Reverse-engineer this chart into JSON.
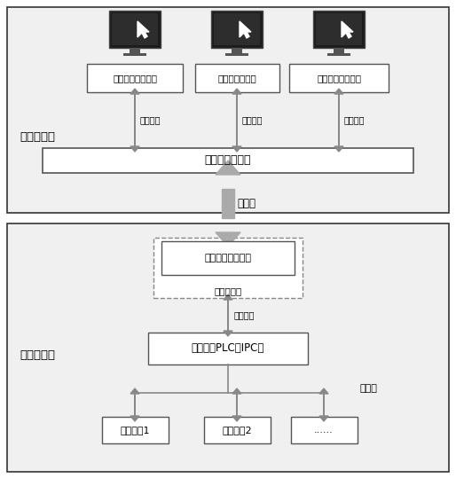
{
  "fig_width": 5.14,
  "fig_height": 5.39,
  "dpi": 100,
  "bg_color": "#ffffff",
  "border_color": "#333333",
  "box_color": "#ffffff",
  "remote_station_label": "远程操作站",
  "field_station_label": "现场控制站",
  "internet_label": "互联网",
  "lan_label": "局域网",
  "data_share_label": "数据共享",
  "top_boxes": [
    "控制策略组态软件",
    "数据库组态软件",
    "人机界面组态软件"
  ],
  "client_box": "客户端通信软件",
  "server_box": "服务器端通信软件",
  "local_server_label": "本地服务器",
  "control_box": "控制站（PLC、IPC）",
  "field_devices": [
    "现场设切1",
    "现场设切2",
    "......"
  ],
  "arrow_color": "#555555",
  "box_edge_color": "#555555",
  "region_bg": "#f0f0f0",
  "monitor_dark": "#1c1c1c",
  "monitor_mid": "#2d2d2d",
  "monitor_stand": "#555555"
}
